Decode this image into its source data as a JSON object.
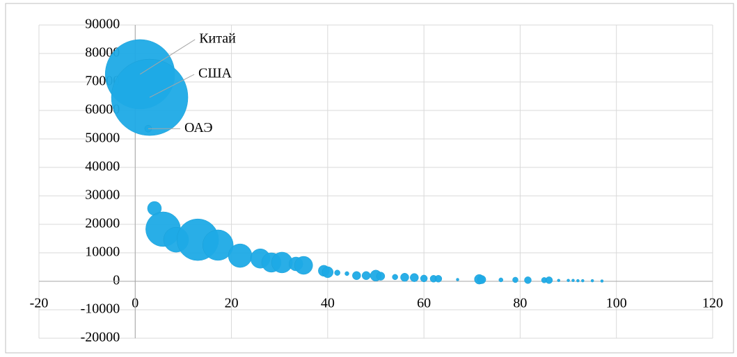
{
  "chart_data": {
    "type": "bubble",
    "x": [
      1,
      3,
      2.7,
      4,
      5.8,
      8.5,
      13,
      17.2,
      21.8,
      26,
      28.3,
      30.5,
      33.4,
      35,
      39.2,
      40,
      42,
      44,
      46,
      48,
      50,
      51,
      54,
      56,
      58,
      60,
      62,
      63,
      67,
      71.5,
      72,
      76,
      79,
      81.6,
      85,
      86,
      88,
      90,
      91,
      92,
      93,
      95,
      97
    ],
    "values": [
      72700,
      64600,
      53600,
      25600,
      18300,
      14600,
      14600,
      12700,
      9000,
      8000,
      6600,
      6600,
      6100,
      5600,
      3700,
      3200,
      3000,
      2700,
      2000,
      2000,
      2000,
      1800,
      1500,
      1400,
      1300,
      1000,
      900,
      900,
      600,
      700,
      600,
      500,
      500,
      400,
      400,
      400,
      300,
      300,
      300,
      200,
      200,
      200,
      100
    ],
    "sizes": [
      2500,
      3025,
      25,
      100,
      625,
      324,
      900,
      484,
      289,
      196,
      196,
      225,
      100,
      169,
      64,
      64,
      16,
      9,
      36,
      36,
      64,
      36,
      16,
      36,
      36,
      25,
      25,
      25,
      4,
      49,
      36,
      9,
      16,
      25,
      16,
      25,
      4,
      4,
      4,
      4,
      4,
      4,
      4
    ],
    "point_labels": [
      "Китай",
      "США",
      "ОАЭ",
      null,
      null,
      null,
      null,
      null,
      null,
      null,
      null,
      null,
      null,
      null,
      null,
      null,
      null,
      null,
      null,
      null,
      null,
      null,
      null,
      null,
      null,
      null,
      null,
      null,
      null,
      null,
      null,
      null,
      null,
      null,
      null,
      null,
      null,
      null,
      null,
      null,
      null,
      null,
      null
    ],
    "color": "#1eaae6",
    "xlim": [
      -20,
      120
    ],
    "xticks": [
      -20,
      0,
      20,
      40,
      60,
      80,
      100,
      120
    ],
    "ylim": [
      -20000,
      90000
    ],
    "yticks": [
      -20000,
      -10000,
      0,
      10000,
      20000,
      30000,
      40000,
      50000,
      60000,
      70000,
      80000,
      90000
    ],
    "grid": true
  }
}
